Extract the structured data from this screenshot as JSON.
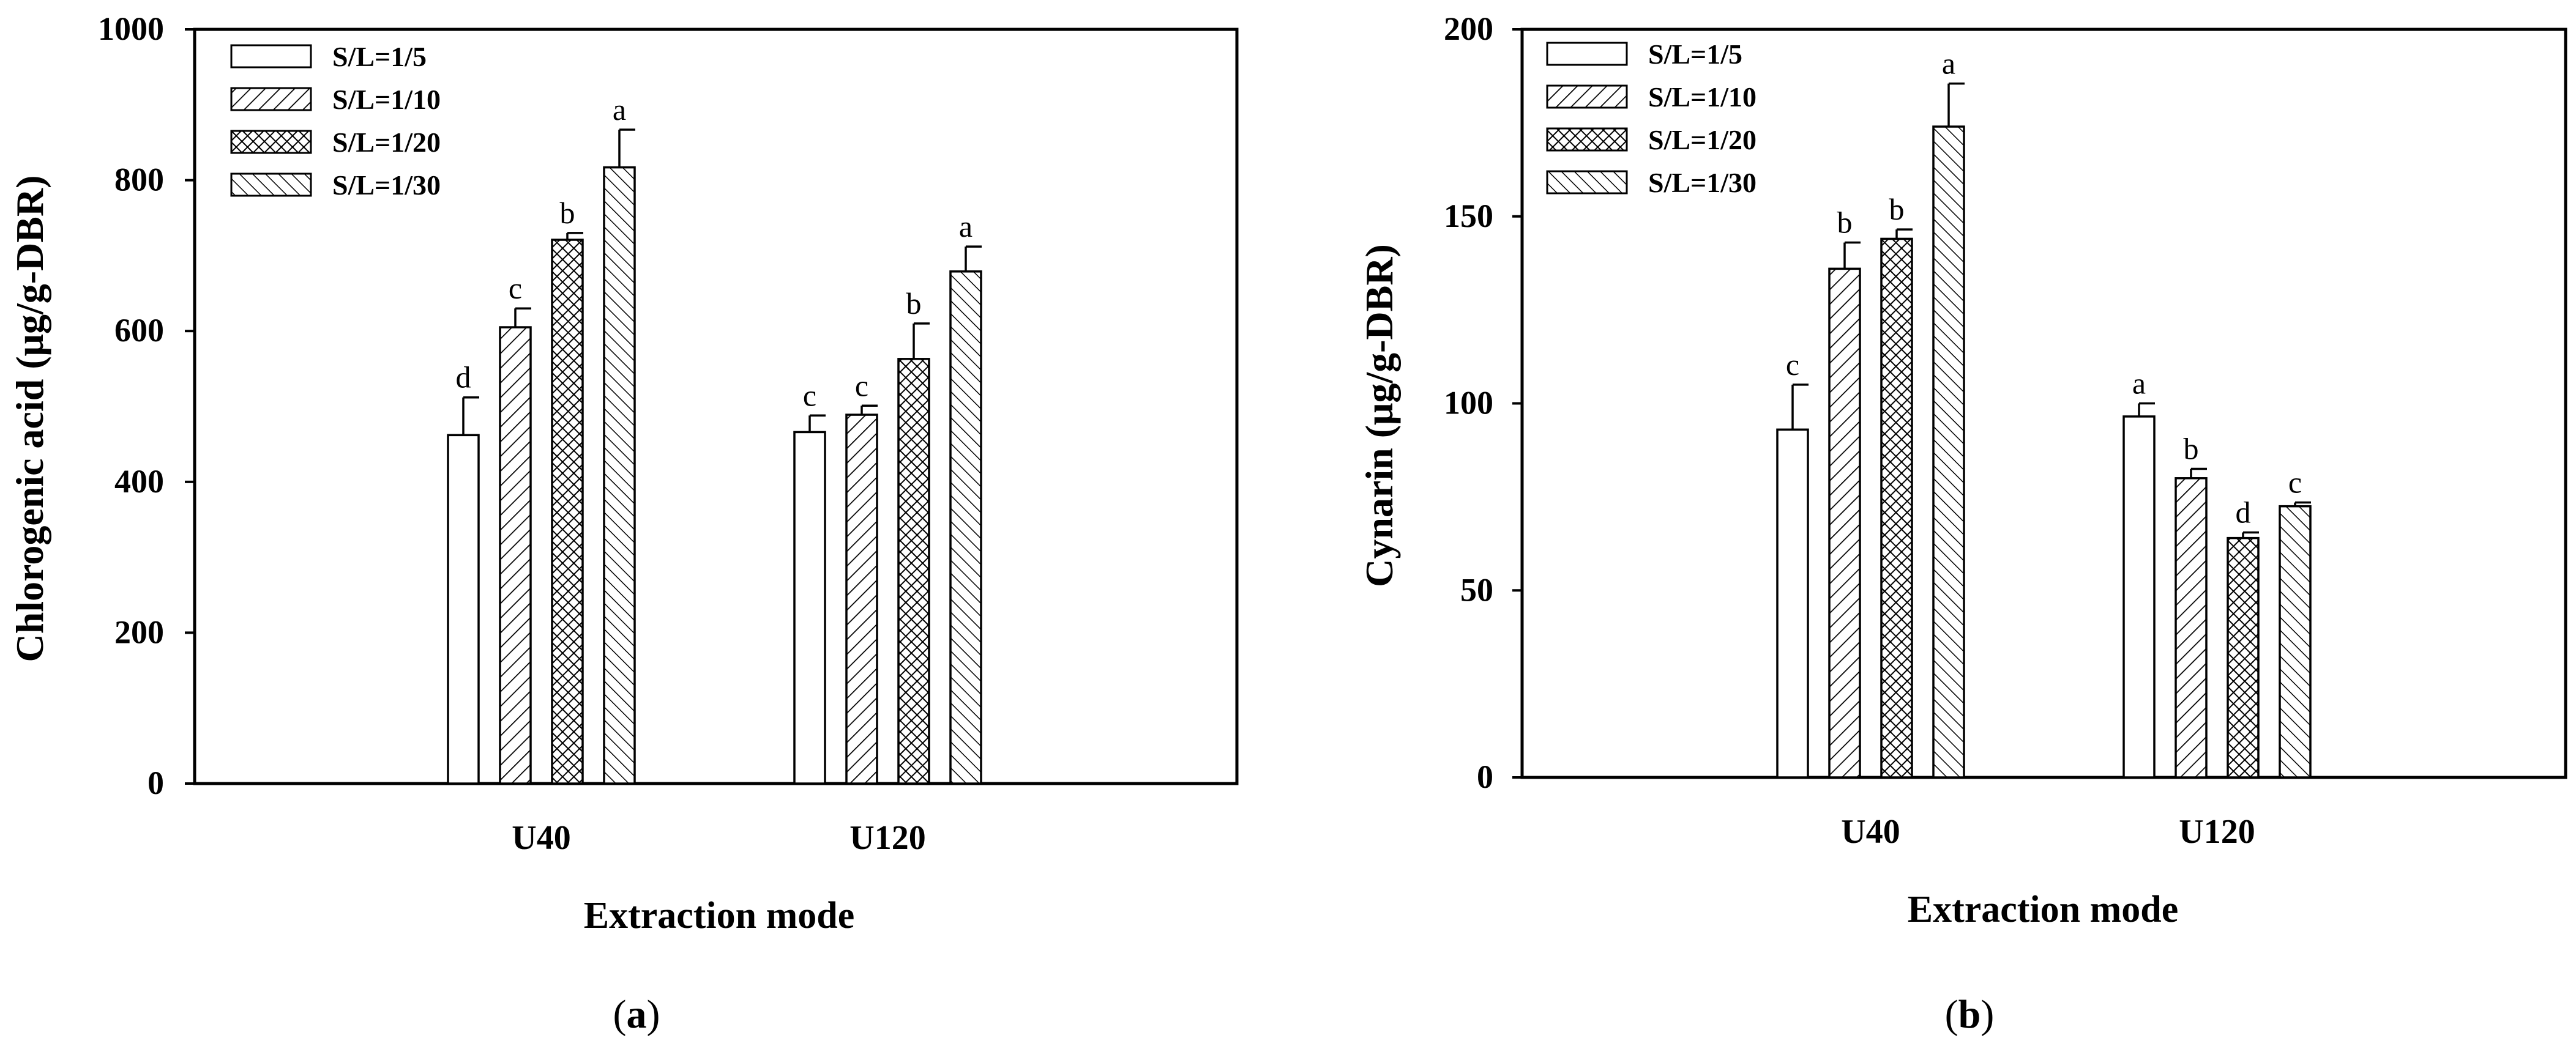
{
  "chart_data": [
    {
      "panel_label": "a",
      "type": "bar",
      "xlabel": "Extraction mode",
      "ylabel": "Chlorogenic acid (μg/g-DBR)",
      "categories": [
        "U40",
        "U120"
      ],
      "ylim": [
        0,
        1000
      ],
      "yticks": [
        0,
        200,
        400,
        600,
        800,
        1000
      ],
      "series": [
        {
          "name": "S/L=1/5",
          "values": [
            462,
            466
          ],
          "errors": [
            50,
            22
          ],
          "letters": [
            "d",
            "c"
          ]
        },
        {
          "name": "S/L=1/10",
          "values": [
            605,
            489
          ],
          "errors": [
            25,
            12
          ],
          "letters": [
            "c",
            "c"
          ]
        },
        {
          "name": "S/L=1/20",
          "values": [
            721,
            563
          ],
          "errors": [
            9,
            47
          ],
          "letters": [
            "b",
            "b"
          ]
        },
        {
          "name": "S/L=1/30",
          "values": [
            817,
            679
          ],
          "errors": [
            50,
            33
          ],
          "letters": [
            "a",
            "a"
          ]
        }
      ],
      "legend": "top-left",
      "grid": false
    },
    {
      "panel_label": "b",
      "type": "bar",
      "xlabel": "Extraction mode",
      "ylabel": "Cynarin (μg/g-DBR)",
      "categories": [
        "U40",
        "U120"
      ],
      "ylim": [
        0,
        200
      ],
      "yticks": [
        0,
        50,
        100,
        150,
        200
      ],
      "series": [
        {
          "name": "S/L=1/5",
          "values": [
            93,
            96.5
          ],
          "errors": [
            12,
            3.5
          ],
          "letters": [
            "c",
            "a"
          ]
        },
        {
          "name": "S/L=1/10",
          "values": [
            136,
            80
          ],
          "errors": [
            7,
            2.5
          ],
          "letters": [
            "b",
            "b"
          ]
        },
        {
          "name": "S/L=1/20",
          "values": [
            144,
            64
          ],
          "errors": [
            2.5,
            1.5
          ],
          "letters": [
            "b",
            "d"
          ]
        },
        {
          "name": "S/L=1/30",
          "values": [
            174,
            72.5
          ],
          "errors": [
            11.5,
            1
          ],
          "letters": [
            "a",
            "c"
          ]
        }
      ],
      "legend": "top-left",
      "grid": false
    }
  ]
}
